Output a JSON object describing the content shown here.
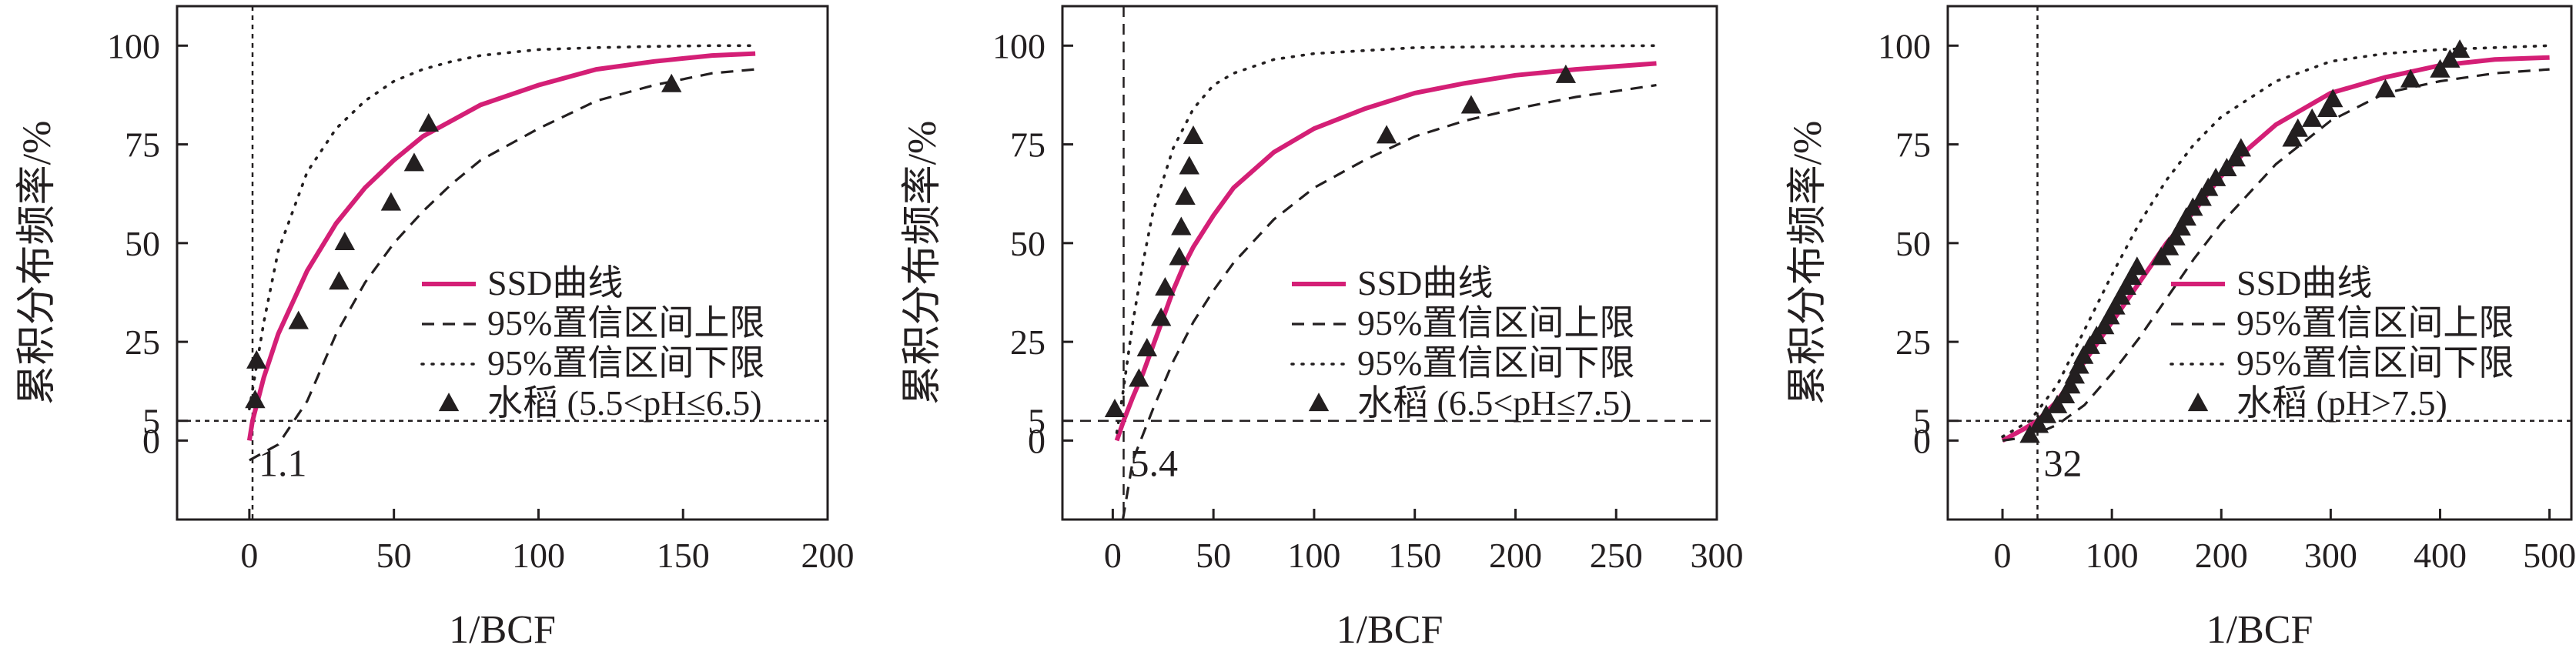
{
  "figure": {
    "panels_count": 3,
    "colors": {
      "ssd": "#d41f76",
      "ink": "#231f20",
      "bg": "#ffffff"
    }
  },
  "chart_data": [
    {
      "type": "line",
      "xlabel": "1/BCF",
      "ylabel": "累积分布频率/%",
      "xlim": [
        -25,
        200
      ],
      "ylim": [
        -20,
        110
      ],
      "xticks": [
        0,
        50,
        100,
        150,
        200
      ],
      "yticks": [
        0,
        5,
        25,
        50,
        75,
        100
      ],
      "hline": 5,
      "vline": 1.1,
      "vline_label": "1.1",
      "legend_position": "right-center",
      "legend": [
        {
          "label": "SSD曲线",
          "style": "solid"
        },
        {
          "label": "95%置信区间上限",
          "style": "dashed"
        },
        {
          "label": "95%置信区间下限",
          "style": "dotted"
        },
        {
          "label": "水稻 (5.5<pH≤6.5)",
          "style": "marker"
        }
      ],
      "series": [
        {
          "name": "SSD曲线",
          "style": "solid",
          "x": [
            0,
            1.1,
            5,
            10,
            20,
            30,
            40,
            50,
            60,
            70,
            80,
            100,
            120,
            140,
            160,
            175
          ],
          "y": [
            0,
            5,
            16,
            27,
            43,
            55,
            64,
            71,
            77,
            81,
            85,
            90,
            94,
            96,
            97.5,
            98
          ]
        },
        {
          "name": "95%置信区间上限",
          "style": "dashed",
          "x": [
            0,
            10,
            20,
            30,
            40,
            50,
            60,
            70,
            80,
            90,
            100,
            120,
            140,
            160,
            175
          ],
          "y": [
            -5,
            -1,
            10,
            27,
            40,
            50,
            58,
            65,
            71,
            75,
            79,
            86,
            90,
            93,
            94
          ]
        },
        {
          "name": "95%置信区间下限",
          "style": "dotted",
          "x": [
            0,
            5,
            10,
            20,
            30,
            40,
            50,
            60,
            70,
            80,
            100,
            120,
            140,
            160,
            175
          ],
          "y": [
            8,
            30,
            48,
            68,
            79,
            86,
            91,
            94,
            96,
            97.5,
            99,
            99.5,
            99.8,
            100,
            100
          ]
        },
        {
          "name": "水稻 (5.5<pH≤6.5)",
          "style": "marker",
          "x": [
            2,
            2.5,
            17,
            31,
            33,
            49,
            57,
            62,
            146
          ],
          "y": [
            10,
            20,
            30,
            40,
            50,
            60,
            70,
            80,
            90
          ]
        }
      ]
    },
    {
      "type": "line",
      "xlabel": "1/BCF",
      "ylabel": "累积分布频率/%",
      "xlim": [
        -25,
        300
      ],
      "ylim": [
        -20,
        110
      ],
      "xticks": [
        0,
        50,
        100,
        150,
        200,
        250,
        300
      ],
      "yticks": [
        0,
        5,
        25,
        50,
        75,
        100
      ],
      "hline": 5,
      "vline": 5.4,
      "vline_label": "5.4",
      "legend_position": "right-center",
      "legend": [
        {
          "label": "SSD曲线",
          "style": "solid"
        },
        {
          "label": "95%置信区间上限",
          "style": "dashed"
        },
        {
          "label": "95%置信区间下限",
          "style": "dotted"
        },
        {
          "label": "水稻 (6.5<pH≤7.5)",
          "style": "marker"
        }
      ],
      "series": [
        {
          "name": "SSD曲线",
          "style": "solid",
          "x": [
            2,
            5.4,
            10,
            15,
            20,
            25,
            30,
            35,
            40,
            50,
            60,
            80,
            100,
            125,
            150,
            175,
            200,
            230,
            270
          ],
          "y": [
            0,
            5,
            11,
            17,
            24,
            31,
            38,
            44,
            49,
            57,
            64,
            73,
            79,
            84,
            88,
            90.5,
            92.5,
            94,
            95.5
          ]
        },
        {
          "name": "95%置信区间上限",
          "style": "dashed",
          "x": [
            5,
            10,
            20,
            30,
            40,
            50,
            60,
            80,
            100,
            125,
            150,
            175,
            200,
            230,
            270
          ],
          "y": [
            -20,
            -5,
            8,
            20,
            30,
            38,
            45,
            56,
            64,
            71,
            77,
            81,
            84,
            87,
            90
          ]
        },
        {
          "name": "95%置信区间下限",
          "style": "dotted",
          "x": [
            2,
            5,
            10,
            15,
            20,
            30,
            40,
            50,
            60,
            80,
            100,
            150,
            200,
            270
          ],
          "y": [
            2,
            12,
            30,
            45,
            58,
            74,
            84,
            90,
            93,
            96.5,
            98,
            99.5,
            99.8,
            100
          ]
        },
        {
          "name": "水稻 (6.5<pH≤7.5)",
          "style": "marker",
          "x": [
            1,
            13,
            17,
            24,
            26,
            33,
            34,
            36,
            38,
            40,
            136,
            178,
            225
          ],
          "y": [
            7.7,
            15.4,
            23.1,
            30.8,
            38.5,
            46.2,
            53.8,
            61.5,
            69.2,
            76.9,
            77,
            84.6,
            92.3
          ]
        }
      ]
    },
    {
      "type": "line",
      "xlabel": "1/BCF",
      "ylabel": "累积分布频率/%",
      "xlim": [
        -50,
        520
      ],
      "ylim": [
        -20,
        110
      ],
      "xticks": [
        0,
        100,
        200,
        300,
        400,
        500
      ],
      "yticks": [
        0,
        5,
        25,
        50,
        75,
        100
      ],
      "hline": 5,
      "vline": 32,
      "vline_label": "32",
      "legend_position": "right-center",
      "legend": [
        {
          "label": "SSD曲线",
          "style": "solid"
        },
        {
          "label": "95%置信区间上限",
          "style": "dashed"
        },
        {
          "label": "95%置信区间下限",
          "style": "dotted"
        },
        {
          "label": "水稻 (pH>7.5)",
          "style": "marker"
        }
      ],
      "series": [
        {
          "name": "SSD曲线",
          "style": "solid",
          "x": [
            0,
            20,
            32,
            50,
            75,
            100,
            125,
            150,
            175,
            200,
            225,
            250,
            300,
            350,
            400,
            450,
            500
          ],
          "y": [
            0,
            3,
            5,
            10,
            20,
            30,
            40,
            50,
            58,
            67,
            74,
            80,
            88,
            92,
            95,
            96.5,
            97
          ]
        },
        {
          "name": "95%置信区间上限",
          "style": "dashed",
          "x": [
            0,
            25,
            50,
            75,
            100,
            125,
            150,
            175,
            200,
            250,
            300,
            350,
            400,
            450,
            500
          ],
          "y": [
            0,
            1,
            4,
            9,
            17,
            26,
            36,
            46,
            55,
            70,
            81,
            88,
            91,
            93,
            94
          ]
        },
        {
          "name": "95%置信区间下限",
          "style": "dotted",
          "x": [
            0,
            25,
            50,
            75,
            100,
            125,
            150,
            175,
            200,
            250,
            300,
            350,
            400,
            450,
            500
          ],
          "y": [
            1,
            5,
            14,
            28,
            42,
            55,
            66,
            75,
            82,
            91,
            96,
            98,
            99,
            99.5,
            100
          ]
        },
        {
          "name": "水稻 (pH>7.5)",
          "style": "marker",
          "x": [
            25,
            33,
            40,
            50,
            57,
            62,
            66,
            70,
            74,
            80,
            86,
            93,
            98,
            103,
            108,
            113,
            118,
            123,
            145,
            152,
            158,
            163,
            168,
            174,
            182,
            188,
            195,
            205,
            213,
            218,
            265,
            270,
            283,
            297,
            302,
            350,
            373,
            400,
            409,
            418
          ],
          "y": [
            1.2,
            3.7,
            6.2,
            8.7,
            11.2,
            13.7,
            16.2,
            18.7,
            21.2,
            23.7,
            26.2,
            28.7,
            31.2,
            33.7,
            36.2,
            38.7,
            41.2,
            43.7,
            46.2,
            48.7,
            51.2,
            53.7,
            56.2,
            58.7,
            61.2,
            63.7,
            66.2,
            68.7,
            71.2,
            73.7,
            76.2,
            78.7,
            81.2,
            83.7,
            86.2,
            88.7,
            91.2,
            93.7,
            96.2,
            98.7
          ]
        }
      ]
    }
  ]
}
